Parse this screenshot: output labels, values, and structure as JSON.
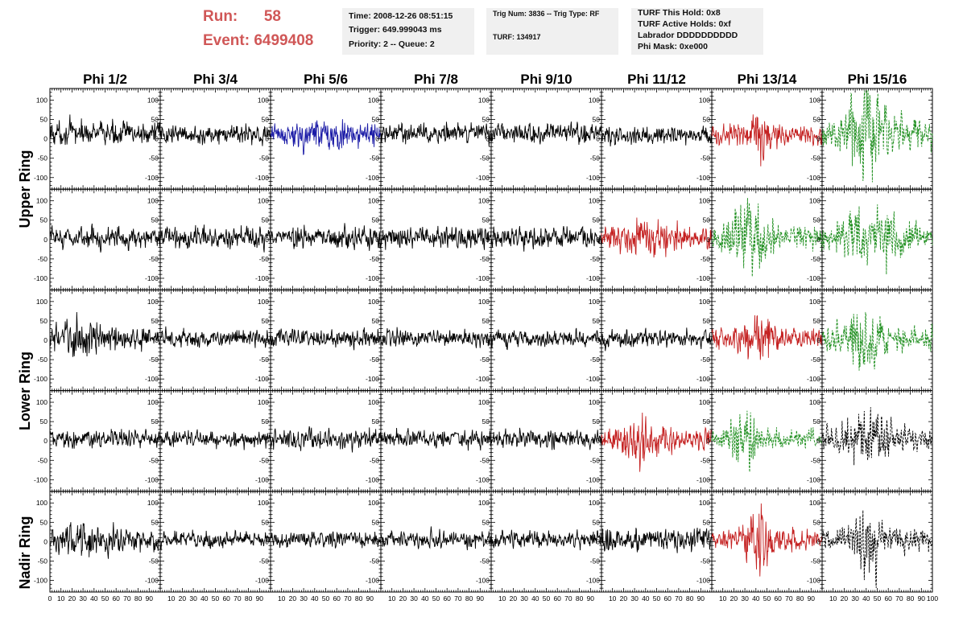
{
  "header": {
    "run_label": "Run:",
    "run_value": "58",
    "event_label": "Event:",
    "event_value": "6499408",
    "box1": {
      "time": "Time: 2008-12-26 08:51:15",
      "trigger": "Trigger: 649.999043 ms",
      "priority": "Priority: 2 -- Queue: 2"
    },
    "box2": {
      "trig": "Trig Num: 3836 -- Trig Type: RF",
      "turf": "TURF: 134917"
    },
    "box3": {
      "hold": "TURF This Hold: 0x8",
      "active": "TURF Active Holds: 0xf",
      "labrador": "Labrador DDDDDDDDDD",
      "phimask": "Phi Mask: 0xe000"
    }
  },
  "colors": {
    "black": "#000000",
    "blue": "#1a1aa6",
    "red": "#c42020",
    "green": "#1f8f1f",
    "header_text": "#d05757",
    "info_bg": "#f0f0f0"
  },
  "chart_data": {
    "type": "line",
    "columns": [
      "Phi 1/2",
      "Phi 3/4",
      "Phi 5/6",
      "Phi 7/8",
      "Phi 9/10",
      "Phi 11/12",
      "Phi 13/14",
      "Phi 15/16"
    ],
    "row_labels": [
      "Upper Ring",
      "Lower Ring",
      "Nadir Ring"
    ],
    "xlim": [
      0,
      100
    ],
    "ylim": [
      -130,
      130
    ],
    "x_ticks": [
      0,
      10,
      20,
      30,
      40,
      50,
      60,
      70,
      80,
      90,
      100
    ],
    "y_ticks": [
      -100,
      -50,
      0,
      50,
      100
    ],
    "samples_per_trace": 260,
    "panels": [
      [
        {
          "color": "black",
          "style": "solid",
          "offset": 15,
          "amp": 16,
          "burst": null
        },
        {
          "color": "black",
          "style": "solid",
          "offset": 10,
          "amp": 12,
          "burst": null
        },
        {
          "color": "blue",
          "style": "solid",
          "offset": 10,
          "amp": 14,
          "burst": {
            "center": 48,
            "width": 15,
            "amp": 12
          }
        },
        {
          "color": "black",
          "style": "solid",
          "offset": 15,
          "amp": 14,
          "burst": null
        },
        {
          "color": "black",
          "style": "solid",
          "offset": 15,
          "amp": 14,
          "burst": null
        },
        {
          "color": "black",
          "style": "solid",
          "offset": 10,
          "amp": 12,
          "burst": null
        },
        {
          "color": "red",
          "style": "solid",
          "offset": 10,
          "amp": 12,
          "burst": {
            "center": 43,
            "width": 9,
            "amp": 28
          }
        },
        {
          "color": "green",
          "style": "dashed",
          "offset": 15,
          "amp": 22,
          "burst": {
            "center": 40,
            "width": 10,
            "amp": 55
          }
        }
      ],
      [
        {
          "color": "black",
          "style": "solid",
          "offset": 5,
          "amp": 14,
          "burst": null
        },
        {
          "color": "black",
          "style": "solid",
          "offset": 5,
          "amp": 14,
          "burst": null
        },
        {
          "color": "black",
          "style": "solid",
          "offset": 5,
          "amp": 14,
          "burst": null
        },
        {
          "color": "black",
          "style": "solid",
          "offset": 5,
          "amp": 14,
          "burst": null
        },
        {
          "color": "black",
          "style": "solid",
          "offset": 5,
          "amp": 14,
          "burst": null
        },
        {
          "color": "red",
          "style": "solid",
          "offset": 5,
          "amp": 16,
          "burst": {
            "center": 45,
            "width": 14,
            "amp": 12
          }
        },
        {
          "color": "green",
          "style": "dashed",
          "offset": 5,
          "amp": 16,
          "burst": {
            "center": 35,
            "width": 12,
            "amp": 40
          }
        },
        {
          "color": "green",
          "style": "dashed",
          "offset": 5,
          "amp": 20,
          "burst": {
            "center": 45,
            "width": 18,
            "amp": 22
          }
        }
      ],
      [
        {
          "color": "black",
          "style": "solid",
          "offset": 5,
          "amp": 16,
          "burst": {
            "center": 30,
            "width": 15,
            "amp": 12
          }
        },
        {
          "color": "black",
          "style": "solid",
          "offset": 5,
          "amp": 12,
          "burst": null
        },
        {
          "color": "black",
          "style": "solid",
          "offset": 5,
          "amp": 12,
          "burst": null
        },
        {
          "color": "black",
          "style": "solid",
          "offset": 5,
          "amp": 12,
          "burst": null
        },
        {
          "color": "black",
          "style": "solid",
          "offset": 5,
          "amp": 12,
          "burst": null
        },
        {
          "color": "black",
          "style": "solid",
          "offset": 5,
          "amp": 12,
          "burst": null
        },
        {
          "color": "red",
          "style": "solid",
          "offset": 5,
          "amp": 14,
          "burst": {
            "center": 43,
            "width": 9,
            "amp": 32
          }
        },
        {
          "color": "green",
          "style": "dashed",
          "offset": 5,
          "amp": 16,
          "burst": {
            "center": 40,
            "width": 10,
            "amp": 40
          }
        }
      ],
      [
        {
          "color": "black",
          "style": "solid",
          "offset": 5,
          "amp": 13,
          "burst": null
        },
        {
          "color": "black",
          "style": "solid",
          "offset": 5,
          "amp": 11,
          "burst": null
        },
        {
          "color": "black",
          "style": "solid",
          "offset": 5,
          "amp": 14,
          "burst": null
        },
        {
          "color": "black",
          "style": "solid",
          "offset": 5,
          "amp": 12,
          "burst": null
        },
        {
          "color": "black",
          "style": "solid",
          "offset": 5,
          "amp": 12,
          "burst": null
        },
        {
          "color": "red",
          "style": "solid",
          "offset": 5,
          "amp": 16,
          "burst": {
            "center": 35,
            "width": 10,
            "amp": 20
          }
        },
        {
          "color": "green",
          "style": "dashed",
          "offset": 5,
          "amp": 12,
          "burst": {
            "center": 30,
            "width": 8,
            "amp": 35
          }
        },
        {
          "color": "black",
          "style": "dashed",
          "offset": 5,
          "amp": 16,
          "burst": {
            "center": 40,
            "width": 14,
            "amp": 24
          }
        }
      ],
      [
        {
          "color": "black",
          "style": "solid",
          "offset": 5,
          "amp": 16,
          "burst": {
            "center": 30,
            "width": 15,
            "amp": 10
          }
        },
        {
          "color": "black",
          "style": "solid",
          "offset": 5,
          "amp": 11,
          "burst": null
        },
        {
          "color": "black",
          "style": "solid",
          "offset": 5,
          "amp": 11,
          "burst": null
        },
        {
          "color": "black",
          "style": "solid",
          "offset": 5,
          "amp": 11,
          "burst": null
        },
        {
          "color": "black",
          "style": "solid",
          "offset": 5,
          "amp": 11,
          "burst": null
        },
        {
          "color": "black",
          "style": "solid",
          "offset": 5,
          "amp": 16,
          "burst": null
        },
        {
          "color": "red",
          "style": "solid",
          "offset": 5,
          "amp": 14,
          "burst": {
            "center": 43,
            "width": 9,
            "amp": 34
          }
        },
        {
          "color": "black",
          "style": "dashed",
          "offset": 5,
          "amp": 16,
          "burst": {
            "center": 40,
            "width": 8,
            "amp": 50
          }
        }
      ]
    ]
  }
}
